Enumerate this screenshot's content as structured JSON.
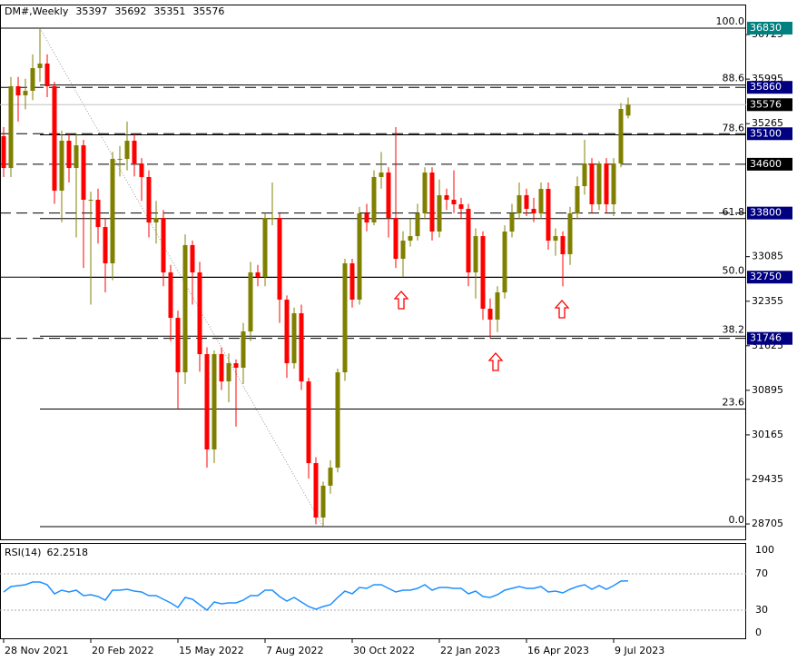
{
  "chart_data": {
    "type": "candlestick",
    "title": "DM#,Weekly",
    "categories": [
      "28 Nov 2021",
      null,
      null,
      null,
      null,
      null,
      null,
      null,
      null,
      null,
      null,
      null,
      "20 Feb 2022",
      null,
      null,
      null,
      null,
      null,
      null,
      null,
      null,
      null,
      null,
      null,
      "15 May 2022",
      null,
      null,
      null,
      null,
      null,
      null,
      null,
      null,
      null,
      null,
      null,
      "7 Aug 2022",
      null,
      null,
      null,
      null,
      null,
      null,
      null,
      null,
      null,
      null,
      null,
      "30 Oct 2022",
      null,
      null,
      null,
      null,
      null,
      null,
      null,
      null,
      null,
      null,
      null,
      "22 Jan 2023",
      null,
      null,
      null,
      null,
      null,
      null,
      null,
      null,
      null,
      null,
      null,
      "16 Apr 2023",
      null,
      null,
      null,
      null,
      null,
      null,
      null,
      null,
      null,
      null,
      null,
      "9 Jul 2023",
      null,
      null
    ],
    "open": [
      35059,
      34538,
      35878,
      35729,
      35803,
      36175,
      36250,
      35878,
      34167,
      34985,
      34538,
      34910,
      34018,
      34018,
      33571,
      32976,
      34687,
      34687,
      34985,
      34613,
      34390,
      33646,
      33720,
      32827,
      32083,
      31190,
      33274,
      32827,
      31488,
      29926,
      31488,
      31041,
      31339,
      31265,
      31860,
      32827,
      32753,
      33720,
      33720,
      32381,
      31339,
      32158,
      31041,
      29702,
      28810,
      29332,
      29628,
      31190,
      32976,
      32381,
      33795,
      33646,
      34390,
      34464,
      33720,
      33050,
      33348,
      33422,
      33795,
      34464,
      33497,
      34092,
      34018,
      33943,
      33869,
      32827,
      33422,
      32232,
      32054,
      32500,
      33497,
      33795,
      34092,
      33869,
      33795,
      34196,
      33348,
      33422,
      33125,
      33795,
      34241,
      34613,
      33943,
      34613,
      33943,
      34613,
      35397
    ],
    "high": [
      35210,
      36030,
      36030,
      36000,
      36400,
      36830,
      36400,
      35950,
      35150,
      35100,
      35100,
      35000,
      34150,
      34200,
      33700,
      34800,
      34900,
      35300,
      35100,
      34700,
      34500,
      34000,
      33850,
      32950,
      32200,
      33450,
      33350,
      33000,
      31600,
      31550,
      31600,
      31500,
      31400,
      32000,
      33000,
      32950,
      33800,
      34300,
      33800,
      32450,
      32250,
      32300,
      31100,
      29800,
      29400,
      29750,
      31250,
      33050,
      33050,
      33900,
      33950,
      34500,
      34800,
      34550,
      35208,
      33500,
      33700,
      33950,
      34550,
      34550,
      34350,
      34200,
      34500,
      34050,
      33950,
      33550,
      33500,
      32400,
      32600,
      33600,
      33950,
      34300,
      34200,
      34050,
      34300,
      34300,
      33550,
      33500,
      33900,
      34400,
      35000,
      34700,
      34650,
      34700,
      34700,
      35600,
      35692
    ],
    "low": [
      34390,
      34390,
      35300,
      35500,
      35650,
      35950,
      35700,
      33950,
      33650,
      34300,
      33400,
      32900,
      32300,
      33300,
      32500,
      32700,
      34400,
      34500,
      34400,
      34000,
      33400,
      33300,
      32600,
      31700,
      30600,
      31000,
      32300,
      31200,
      29628,
      29700,
      30900,
      30700,
      30300,
      31000,
      31700,
      32600,
      32600,
      33600,
      32000,
      31100,
      31250,
      30900,
      29450,
      28700,
      28661,
      29200,
      29550,
      31050,
      32250,
      32300,
      33500,
      33600,
      34200,
      33400,
      32900,
      32750,
      33250,
      33350,
      33700,
      33350,
      33400,
      33850,
      33800,
      33700,
      32600,
      32400,
      32050,
      31750,
      31850,
      32400,
      33400,
      33700,
      33750,
      33650,
      33700,
      33200,
      33100,
      32600,
      32950,
      33700,
      34100,
      33800,
      33850,
      33800,
      33750,
      34550,
      35351
    ],
    "close": [
      34538,
      35878,
      35729,
      35803,
      36175,
      36250,
      35878,
      34167,
      34985,
      34538,
      34910,
      34018,
      34018,
      33571,
      32976,
      34687,
      34687,
      34985,
      34613,
      34390,
      33646,
      33720,
      32827,
      32083,
      31190,
      33274,
      32827,
      31488,
      29926,
      31488,
      31041,
      31339,
      31265,
      31860,
      32827,
      32753,
      33720,
      33720,
      32381,
      31339,
      32158,
      31041,
      29702,
      28810,
      29332,
      29628,
      31190,
      32976,
      32381,
      33795,
      33646,
      34390,
      34464,
      33720,
      33050,
      33348,
      33422,
      33795,
      34464,
      33497,
      34092,
      34018,
      33943,
      33869,
      32827,
      33422,
      32232,
      32054,
      32500,
      33497,
      33795,
      34092,
      33869,
      33795,
      34196,
      33348,
      33422,
      33125,
      33795,
      34241,
      34613,
      33943,
      34613,
      33943,
      34613,
      35506,
      35576
    ],
    "up_color": "#808000",
    "down_color": "#ff0000",
    "ylim": [
      28438,
      37217
    ],
    "yticks": [
      28705,
      29435,
      30165,
      30895,
      31625,
      32355,
      33085,
      35265,
      35995,
      36725
    ],
    "levels": [
      {
        "price": 36830,
        "style": "solid",
        "color": "#008080"
      },
      {
        "price": 35860,
        "style": "dashed",
        "color": "#000080"
      },
      {
        "price": 35100,
        "style": "dashed",
        "color": "#000080"
      },
      {
        "price": 34600,
        "style": "dashed",
        "color": "#000000"
      },
      {
        "price": 33800,
        "style": "dashed",
        "color": "#000080"
      },
      {
        "price": 32750,
        "style": "solid",
        "color": "#000080"
      },
      {
        "price": 31746,
        "style": "dashed",
        "color": "#000080"
      }
    ],
    "fib_levels": [
      {
        "label": "100.0",
        "price": 36830
      },
      {
        "label": "88.6",
        "price": 35899
      },
      {
        "label": "78.6",
        "price": 35082
      },
      {
        "label": "61.8",
        "price": 33709
      },
      {
        "label": "50.0",
        "price": 32746
      },
      {
        "label": "38.2",
        "price": 31782
      },
      {
        "label": "23.6",
        "price": 30589
      },
      {
        "label": "0.0",
        "price": 28661
      }
    ],
    "rsi": {
      "name": "RSI(14)",
      "color": "#1e90ff",
      "ylim": [
        0,
        100
      ],
      "yticks": [
        0,
        30,
        70,
        100
      ],
      "values": [
        50,
        56,
        57,
        58,
        61,
        61,
        58,
        48,
        52,
        50,
        52,
        46,
        47,
        45,
        41,
        52,
        52,
        53,
        51,
        50,
        46,
        46,
        42,
        38,
        33,
        44,
        42,
        36,
        30,
        39,
        37,
        38,
        38,
        41,
        46,
        46,
        52,
        52,
        45,
        40,
        44,
        39,
        34,
        31,
        34,
        36,
        44,
        51,
        48,
        55,
        54,
        58,
        58,
        54,
        50,
        52,
        52,
        54,
        58,
        52,
        55,
        55,
        54,
        54,
        48,
        51,
        45,
        44,
        47,
        52,
        54,
        56,
        54,
        54,
        56,
        50,
        51,
        49,
        53,
        56,
        58,
        53,
        57,
        53,
        57,
        62,
        62.2518
      ]
    }
  }
}
